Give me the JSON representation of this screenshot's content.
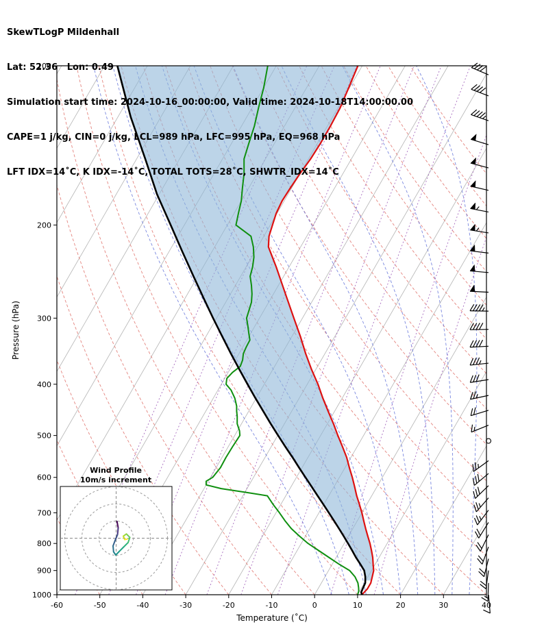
{
  "header": {
    "title": "SkewTLogP Mildenhall",
    "location": "Lat: 52.36   Lon: 0.49",
    "times": "Simulation start time: 2024-10-16_00:00:00, Valid time: 2024-10-18T14:00:00.00",
    "indices_line1": "CAPE=1 j/kg, CIN=0 j/kg, LCL=989 hPa, LFC=995 hPa, EQ=968 hPa",
    "indices_line2": "LFT IDX=14˚C, K IDX=-14˚C, TOTAL TOTS=28˚C, SHWTR_IDX=14˚C"
  },
  "chart_data": {
    "type": "skewt-logp",
    "title": "SkewTLogP Mildenhall",
    "station": "Mildenhall",
    "lat": 52.36,
    "lon": 0.49,
    "indices": {
      "CAPE_jkg": 1,
      "CIN_jkg": 0,
      "LCL_hPa": 989,
      "LFC_hPa": 995,
      "EQ_hPa": 968,
      "LFT_IDX_C": 14,
      "K_IDX_C": -14,
      "TOTAL_TOTS_C": 28,
      "SHWTR_IDX_C": 14
    },
    "x_axis": {
      "label": "Temperature (˚C)",
      "min": -60,
      "max": 40,
      "ticks": [
        -60,
        -50,
        -40,
        -30,
        -20,
        -10,
        0,
        10,
        20,
        30,
        40
      ]
    },
    "y_axis": {
      "label": "Pressure (hPa)",
      "scale": "log",
      "min": 100,
      "max": 1000,
      "ticks": [
        100,
        200,
        300,
        400,
        500,
        600,
        700,
        800,
        900,
        1000
      ]
    },
    "skew_deg": 30,
    "profiles": {
      "temperature": {
        "name": "temperature",
        "color": "#dd1111",
        "points": [
          [
            1000,
            11
          ],
          [
            975,
            11.5
          ],
          [
            950,
            11.5
          ],
          [
            925,
            11
          ],
          [
            900,
            10.5
          ],
          [
            875,
            9.5
          ],
          [
            850,
            8.5
          ],
          [
            825,
            7.3
          ],
          [
            800,
            6
          ],
          [
            775,
            4.5
          ],
          [
            750,
            3
          ],
          [
            725,
            1.5
          ],
          [
            700,
            0
          ],
          [
            675,
            -1.7
          ],
          [
            650,
            -3.5
          ],
          [
            625,
            -5.2
          ],
          [
            600,
            -7
          ],
          [
            575,
            -9
          ],
          [
            550,
            -11
          ],
          [
            525,
            -13.4
          ],
          [
            500,
            -16
          ],
          [
            475,
            -18.6
          ],
          [
            450,
            -21.5
          ],
          [
            425,
            -24.5
          ],
          [
            400,
            -27.5
          ],
          [
            375,
            -31
          ],
          [
            350,
            -34.5
          ],
          [
            325,
            -38
          ],
          [
            300,
            -42
          ],
          [
            275,
            -46.3
          ],
          [
            250,
            -51
          ],
          [
            240,
            -53
          ],
          [
            230,
            -55.2
          ],
          [
            220,
            -57.5
          ],
          [
            210,
            -58.8
          ],
          [
            200,
            -59.5
          ],
          [
            190,
            -60.2
          ],
          [
            180,
            -60.5
          ],
          [
            170,
            -60.3
          ],
          [
            160,
            -60
          ],
          [
            150,
            -59.5
          ],
          [
            140,
            -59.3
          ],
          [
            130,
            -59.3
          ],
          [
            120,
            -59.5
          ],
          [
            110,
            -60.2
          ],
          [
            100,
            -61
          ]
        ]
      },
      "dewpoint": {
        "name": "dewpoint",
        "color": "#0f8f0f",
        "points": [
          [
            1000,
            10
          ],
          [
            985,
            9.8
          ],
          [
            970,
            9.3
          ],
          [
            950,
            8.5
          ],
          [
            925,
            7
          ],
          [
            900,
            4.9
          ],
          [
            875,
            1.5
          ],
          [
            850,
            -1.7
          ],
          [
            825,
            -5
          ],
          [
            800,
            -8.4
          ],
          [
            775,
            -11.4
          ],
          [
            750,
            -14.3
          ],
          [
            725,
            -16.8
          ],
          [
            700,
            -19.2
          ],
          [
            675,
            -21.8
          ],
          [
            650,
            -24.3
          ],
          [
            640,
            -30
          ],
          [
            630,
            -36
          ],
          [
            620,
            -40
          ],
          [
            610,
            -40.5
          ],
          [
            600,
            -39.5
          ],
          [
            575,
            -39
          ],
          [
            550,
            -39.1
          ],
          [
            525,
            -39
          ],
          [
            500,
            -38.8
          ],
          [
            490,
            -39.5
          ],
          [
            475,
            -41
          ],
          [
            460,
            -42
          ],
          [
            450,
            -42.8
          ],
          [
            440,
            -43.5
          ],
          [
            425,
            -45
          ],
          [
            410,
            -47
          ],
          [
            400,
            -48.9
          ],
          [
            390,
            -49.5
          ],
          [
            380,
            -49
          ],
          [
            370,
            -48
          ],
          [
            360,
            -48.3
          ],
          [
            350,
            -49
          ],
          [
            340,
            -49.2
          ],
          [
            330,
            -49.3
          ],
          [
            320,
            -50.5
          ],
          [
            310,
            -51.7
          ],
          [
            300,
            -53
          ],
          [
            290,
            -53.5
          ],
          [
            280,
            -54
          ],
          [
            270,
            -55
          ],
          [
            260,
            -56.3
          ],
          [
            250,
            -57.8
          ],
          [
            240,
            -58.5
          ],
          [
            230,
            -59.5
          ],
          [
            220,
            -61
          ],
          [
            210,
            -63
          ],
          [
            200,
            -68
          ],
          [
            190,
            -69
          ],
          [
            180,
            -70
          ],
          [
            170,
            -71.5
          ],
          [
            160,
            -73
          ],
          [
            150,
            -75
          ],
          [
            140,
            -76
          ],
          [
            130,
            -77
          ],
          [
            120,
            -78.5
          ],
          [
            110,
            -80
          ],
          [
            100,
            -82
          ]
        ]
      },
      "parcel": {
        "name": "parcel",
        "color": "#000000",
        "points": [
          [
            1000,
            11
          ],
          [
            989,
            10.5
          ],
          [
            975,
            10.4
          ],
          [
            950,
            10.2
          ],
          [
            925,
            9.4
          ],
          [
            900,
            8.3
          ],
          [
            875,
            6.5
          ],
          [
            850,
            4.6
          ],
          [
            825,
            2.8
          ],
          [
            800,
            0.9
          ],
          [
            775,
            -1.1
          ],
          [
            750,
            -3.2
          ],
          [
            725,
            -5.4
          ],
          [
            700,
            -7.7
          ],
          [
            675,
            -10.1
          ],
          [
            650,
            -12.6
          ],
          [
            625,
            -15.2
          ],
          [
            600,
            -17.9
          ],
          [
            575,
            -20.7
          ],
          [
            550,
            -23.6
          ],
          [
            525,
            -26.7
          ],
          [
            500,
            -29.9
          ],
          [
            475,
            -33.2
          ],
          [
            450,
            -36.6
          ],
          [
            425,
            -40.2
          ],
          [
            400,
            -43.9
          ],
          [
            375,
            -47.8
          ],
          [
            350,
            -51.9
          ],
          [
            325,
            -56.2
          ],
          [
            300,
            -60.8
          ],
          [
            275,
            -65.7
          ],
          [
            250,
            -71
          ],
          [
            225,
            -76.8
          ],
          [
            200,
            -83.2
          ],
          [
            175,
            -90.5
          ],
          [
            150,
            -98
          ],
          [
            125,
            -107
          ],
          [
            100,
            -117
          ]
        ]
      }
    },
    "cape_shading": {
      "between": [
        "parcel",
        "temperature"
      ],
      "color": "#8fb8d8",
      "opacity": 0.6,
      "pressure_range": [
        940,
        100
      ]
    },
    "background_lines": {
      "isotherms": {
        "color": "#b3b3b3",
        "min": -130,
        "max": 40,
        "step": 10,
        "style": "solid"
      },
      "dry_adiabats": {
        "color": "#e4837d",
        "style": "dashed",
        "theta_c": [
          -60,
          -50,
          -40,
          -30,
          -20,
          -10,
          0,
          10,
          20,
          30,
          40,
          50,
          60,
          70,
          80,
          90,
          100,
          110,
          120,
          130,
          140,
          150,
          160
        ]
      },
      "moist_adiabats": {
        "color": "#6272d9",
        "style": "dashed",
        "thetaw_c": [
          4,
          8,
          12,
          16,
          20,
          24,
          28,
          32,
          36,
          40,
          44,
          48,
          52,
          56,
          60
        ]
      },
      "mixing_ratio": {
        "color": "#a76bbf",
        "style": "dotted",
        "values_g_kg": [
          0.02,
          0.05,
          0.1,
          0.2,
          0.5,
          1,
          2,
          5,
          10
        ]
      }
    },
    "wind_barbs": {
      "units": "kt",
      "levels": [
        [
          1000,
          175,
          10
        ],
        [
          950,
          182,
          15
        ],
        [
          900,
          188,
          18
        ],
        [
          855,
          194,
          20
        ],
        [
          812,
          200,
          20
        ],
        [
          770,
          206,
          22
        ],
        [
          730,
          212,
          22
        ],
        [
          692,
          217,
          25
        ],
        [
          656,
          221,
          25
        ],
        [
          622,
          226,
          28
        ],
        [
          590,
          230,
          28
        ],
        [
          558,
          234,
          25
        ],
        [
          512,
          0,
          0
        ],
        [
          478,
          248,
          15
        ],
        [
          448,
          253,
          20
        ],
        [
          420,
          258,
          25
        ],
        [
          392,
          261,
          30
        ],
        [
          365,
          264,
          35
        ],
        [
          339,
          267,
          38
        ],
        [
          315,
          269,
          42
        ],
        [
          291,
          271,
          45
        ],
        [
          268,
          273,
          48
        ],
        [
          246,
          275,
          50
        ],
        [
          226,
          277,
          52
        ],
        [
          207,
          279,
          55
        ],
        [
          189,
          281,
          55
        ],
        [
          172,
          283,
          52
        ],
        [
          156,
          285,
          50
        ],
        [
          141,
          287,
          48
        ],
        [
          127,
          289,
          45
        ],
        [
          114,
          291,
          42
        ],
        [
          104,
          293,
          40
        ]
      ]
    },
    "hodograph": {
      "title": "Wind Profile",
      "subtitle": "10m/s increment",
      "ring_increment_ms": 10,
      "rings_ms": [
        10,
        20,
        30
      ],
      "points_uv_ms": [
        [
          0.5,
          9.8
        ],
        [
          1.2,
          6
        ],
        [
          0.8,
          2
        ],
        [
          -0.5,
          -1
        ],
        [
          -1.8,
          -4.5
        ],
        [
          -1.5,
          -8
        ],
        [
          -0.2,
          -9.8
        ],
        [
          2,
          -7.5
        ],
        [
          4.5,
          -5
        ],
        [
          7,
          -2.5
        ],
        [
          8,
          0.5
        ],
        [
          6,
          2.5
        ],
        [
          4.2,
          1.2
        ],
        [
          5,
          -0.8
        ],
        [
          6.5,
          -0.5
        ]
      ],
      "segment_colors": [
        "#440154",
        "#46327e",
        "#3d4e8a",
        "#34608d",
        "#2c718e",
        "#25828e",
        "#1f948c",
        "#20a486",
        "#2db27d",
        "#44bf70",
        "#6ccd5a",
        "#9bd93c",
        "#c8e020",
        "#fde725"
      ]
    }
  }
}
